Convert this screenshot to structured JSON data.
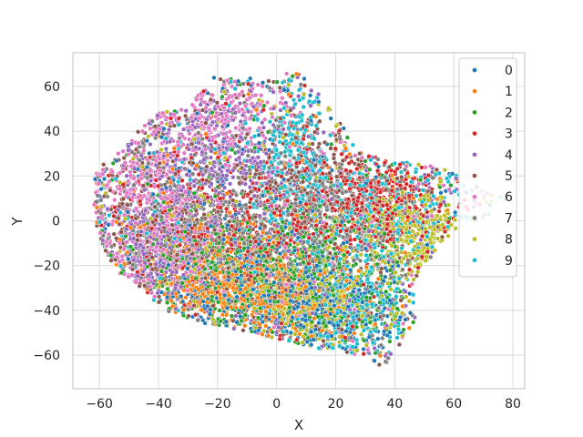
{
  "chart_data": {
    "type": "scatter",
    "title": "",
    "xlabel": "X",
    "ylabel": "Y",
    "xlim": [
      -69,
      84
    ],
    "ylim": [
      -75,
      75
    ],
    "xticks": [
      -60,
      -40,
      -20,
      0,
      20,
      40,
      60,
      80
    ],
    "yticks": [
      -60,
      -40,
      -20,
      0,
      20,
      40,
      60
    ],
    "grid": true,
    "legend_position": "top-right",
    "point_count_per_series": 1000,
    "series": [
      {
        "name": "0",
        "color": "#1f77b4",
        "regions": [
          [
            -10,
            -30,
            25,
            18
          ],
          [
            20,
            -40,
            15,
            15
          ]
        ]
      },
      {
        "name": "1",
        "color": "#ff7f0e",
        "regions": [
          [
            0,
            -35,
            20,
            15
          ],
          [
            -20,
            -25,
            18,
            15
          ]
        ]
      },
      {
        "name": "2",
        "color": "#2ca02c",
        "regions": [
          [
            10,
            -30,
            25,
            20
          ],
          [
            -10,
            -20,
            25,
            18
          ]
        ]
      },
      {
        "name": "3",
        "color": "#d62728",
        "regions": [
          [
            -5,
            0,
            30,
            20
          ],
          [
            35,
            10,
            15,
            15
          ]
        ]
      },
      {
        "name": "4",
        "color": "#9467bd",
        "regions": [
          [
            -20,
            30,
            20,
            20
          ],
          [
            -40,
            -10,
            15,
            20
          ]
        ]
      },
      {
        "name": "5",
        "color": "#8c564b",
        "regions": [
          [
            -40,
            0,
            15,
            25
          ],
          [
            -15,
            -15,
            20,
            20
          ],
          [
            10,
            20,
            15,
            15
          ]
        ]
      },
      {
        "name": "6",
        "color": "#e377c2",
        "regions": [
          [
            -20,
            45,
            18,
            14
          ],
          [
            -45,
            15,
            15,
            20
          ],
          [
            -40,
            -15,
            15,
            15
          ]
        ]
      },
      {
        "name": "7",
        "color": "#7f7f7f",
        "regions": [
          [
            -25,
            0,
            25,
            25
          ],
          [
            20,
            0,
            20,
            20
          ]
        ]
      },
      {
        "name": "8",
        "color": "#bcbd22",
        "regions": [
          [
            15,
            -35,
            20,
            18
          ],
          [
            45,
            -5,
            12,
            12
          ]
        ]
      },
      {
        "name": "9",
        "color": "#17becf",
        "regions": [
          [
            30,
            5,
            25,
            15
          ],
          [
            25,
            -35,
            15,
            20
          ],
          [
            5,
            30,
            10,
            20
          ]
        ]
      }
    ]
  }
}
